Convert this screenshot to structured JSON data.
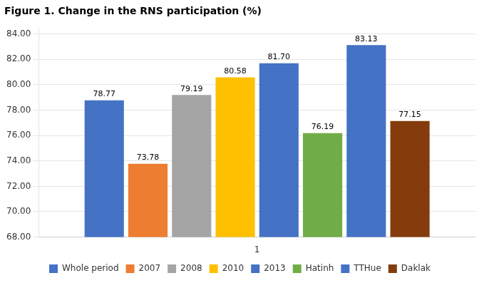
{
  "chart_data": {
    "type": "bar",
    "title": "Figure 1. Change in the RNS participation (%)",
    "categories": [
      "1"
    ],
    "series": [
      {
        "name": "Whole period",
        "color": "#4472C4",
        "values": [
          78.77
        ],
        "value_labels": [
          "78.77"
        ]
      },
      {
        "name": "2007",
        "color": "#ED7D31",
        "values": [
          73.78
        ],
        "value_labels": [
          "73.78"
        ]
      },
      {
        "name": "2008",
        "color": "#A5A5A5",
        "values": [
          79.19
        ],
        "value_labels": [
          "79.19"
        ]
      },
      {
        "name": "2010",
        "color": "#FFC000",
        "values": [
          80.58
        ],
        "value_labels": [
          "80.58"
        ]
      },
      {
        "name": "2013",
        "color": "#4472C4",
        "values": [
          81.7
        ],
        "value_labels": [
          "81.70"
        ]
      },
      {
        "name": "Hatinh",
        "color": "#70AD47",
        "values": [
          76.19
        ],
        "value_labels": [
          "76.19"
        ]
      },
      {
        "name": "TTHue",
        "color": "#4472C4",
        "values": [
          83.13
        ],
        "value_labels": [
          "83.13"
        ]
      },
      {
        "name": "Daklak",
        "color": "#843C0C",
        "values": [
          77.15
        ],
        "value_labels": [
          "77.15"
        ]
      }
    ],
    "ylim": [
      68.0,
      84.5
    ],
    "yticks": [
      {
        "value": 68,
        "label": "68.00"
      },
      {
        "value": 70,
        "label": "70.00"
      },
      {
        "value": 72,
        "label": "72.00"
      },
      {
        "value": 74,
        "label": "74.00"
      },
      {
        "value": 76,
        "label": "76.00"
      },
      {
        "value": 78,
        "label": "78.00"
      },
      {
        "value": 80,
        "label": "80.00"
      },
      {
        "value": 82,
        "label": "82.00"
      },
      {
        "value": 84,
        "label": "84.00"
      }
    ],
    "grid": true,
    "legend": "bottom",
    "data_labels": true
  }
}
